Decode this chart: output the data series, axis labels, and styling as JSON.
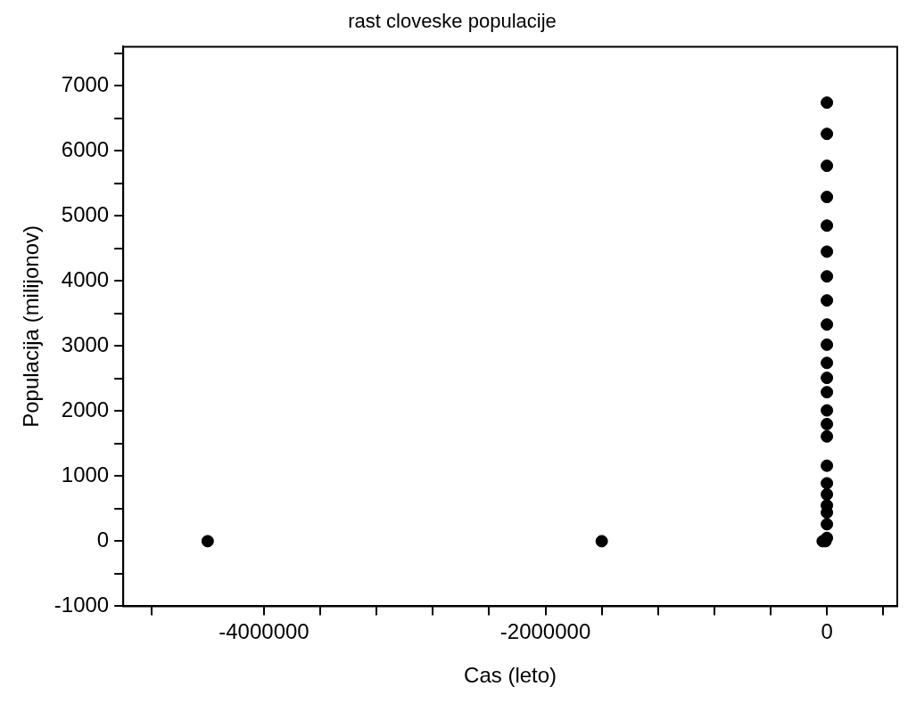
{
  "chart_data": {
    "type": "scatter",
    "title": "rast cloveske populacije",
    "xlabel": "Cas (leto)",
    "ylabel": "Populacija (milijonov)",
    "x": [
      -4400000,
      -1600000,
      -30000,
      -10000,
      0,
      0,
      0,
      0,
      0,
      0,
      0,
      0,
      0,
      0,
      0,
      0,
      0,
      0,
      0,
      0,
      0,
      0,
      0,
      0,
      0,
      0,
      0
    ],
    "series": [
      {
        "color": "#000000",
        "values": [
          0,
          0,
          0,
          0,
          50,
          260,
          440,
          550,
          720,
          890,
          1160,
          1610,
          1800,
          2010,
          2290,
          2510,
          2740,
          3020,
          3330,
          3700,
          4070,
          4450,
          4850,
          5290,
          5770,
          6260,
          6740
        ]
      }
    ],
    "marker": "circle",
    "xlim": [
      -5000000,
      500000
    ],
    "xticks": [
      {
        "value": -4800000,
        "label": null
      },
      -4000000,
      {
        "value": -3600000,
        "label": null
      },
      {
        "value": -3200000,
        "label": null
      },
      {
        "value": -2800000,
        "label": null
      },
      {
        "value": -2400000,
        "label": null
      },
      -2000000,
      {
        "value": -1600000,
        "label": null
      },
      {
        "value": -1200000,
        "label": null
      },
      {
        "value": -800000,
        "label": null
      },
      {
        "value": -400000,
        "label": null
      },
      0,
      {
        "value": 400000,
        "label": null
      }
    ],
    "ylim": [
      -1000,
      7600
    ],
    "yticks": [
      -1000,
      {
        "value": -500,
        "label": null
      },
      0,
      {
        "value": 500,
        "label": null
      },
      1000,
      {
        "value": 1500,
        "label": null
      },
      2000,
      {
        "value": 2500,
        "label": null
      },
      3000,
      {
        "value": 3500,
        "label": null
      },
      4000,
      {
        "value": 4500,
        "label": null
      },
      5000,
      {
        "value": 5500,
        "label": null
      },
      6000,
      {
        "value": 6500,
        "label": null
      },
      7000,
      {
        "value": 7500,
        "label": null
      }
    ],
    "grid": false,
    "legend": false
  }
}
